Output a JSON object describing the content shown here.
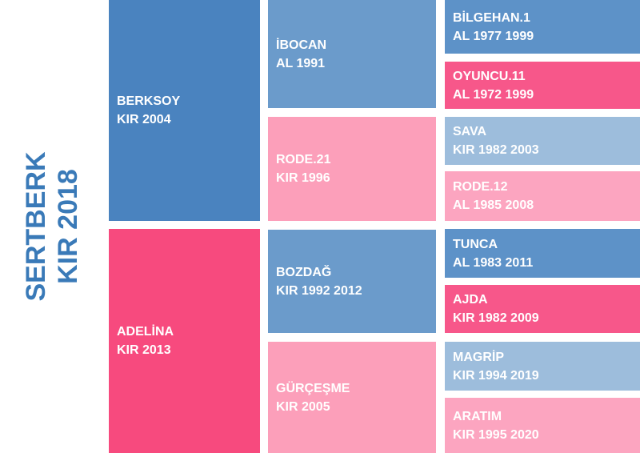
{
  "subject": {
    "name": "SERTBERK",
    "info": "KIR 2018"
  },
  "sire": {
    "name": "BERKSOY",
    "info": "KIR 2004"
  },
  "dam": {
    "name": "ADELİNA",
    "info": "KIR 2013"
  },
  "grandparents": [
    {
      "name": "İBOCAN",
      "info": "AL 1991"
    },
    {
      "name": "RODE.21",
      "info": "KIR 1996"
    },
    {
      "name": "BOZDAĞ",
      "info": "KIR 1992 2012"
    },
    {
      "name": "GÜRÇEŞME",
      "info": "KIR 2005"
    }
  ],
  "great_grandparents": [
    {
      "name": "BİLGEHAN.1",
      "info": "AL 1977 1999"
    },
    {
      "name": "OYUNCU.11",
      "info": "AL 1972 1999"
    },
    {
      "name": "SAVA",
      "info": "KIR 1982 2003"
    },
    {
      "name": "RODE.12",
      "info": "AL 1985 2008"
    },
    {
      "name": "TUNCA",
      "info": "AL 1983 2011"
    },
    {
      "name": "AJDA",
      "info": "KIR 1982 2009"
    },
    {
      "name": "MAGRİP",
      "info": "KIR 1994 2019"
    },
    {
      "name": "ARATIM",
      "info": "KIR 1995 2020"
    }
  ]
}
